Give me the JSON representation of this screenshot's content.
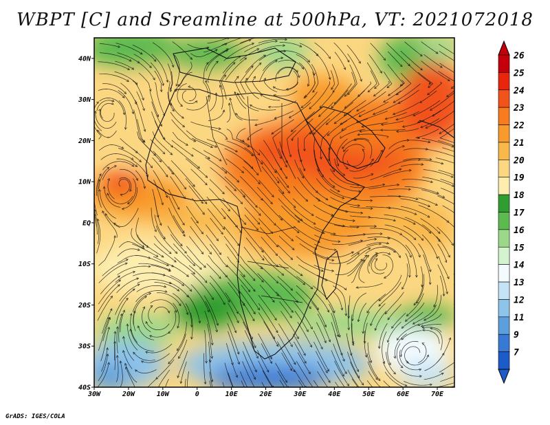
{
  "title": "WBPT [C] and Sreamline at 500hPa, VT: 2021072018",
  "footer": "GrADS: IGES/COLA",
  "map": {
    "lon_range": [
      -30,
      75
    ],
    "lat_range": [
      -40,
      45
    ],
    "lon_ticks": [
      "30W",
      "20W",
      "10W",
      "0",
      "10E",
      "20E",
      "30E",
      "40E",
      "50E",
      "60E",
      "70E"
    ],
    "lat_ticks": [
      "40N",
      "30N",
      "20N",
      "10N",
      "EQ",
      "10S",
      "20S",
      "30S",
      "40S"
    ]
  },
  "colorbar": {
    "labels": [
      "26",
      "25",
      "24",
      "23",
      "22",
      "21",
      "20",
      "19",
      "18",
      "17",
      "16",
      "15",
      "14",
      "13",
      "12",
      "11",
      "9",
      "7"
    ],
    "colors": [
      "#c4000a",
      "#e8260e",
      "#f2531a",
      "#f67c1e",
      "#f89a2c",
      "#f9b84c",
      "#fcd782",
      "#fdeeb0",
      "#2f9d2f",
      "#5cba4f",
      "#9bd889",
      "#d4f3cf",
      "#f3fbff",
      "#c4e3f6",
      "#8ec3ea",
      "#5d9fdc",
      "#3879d4",
      "#1d5bc8"
    ]
  }
}
